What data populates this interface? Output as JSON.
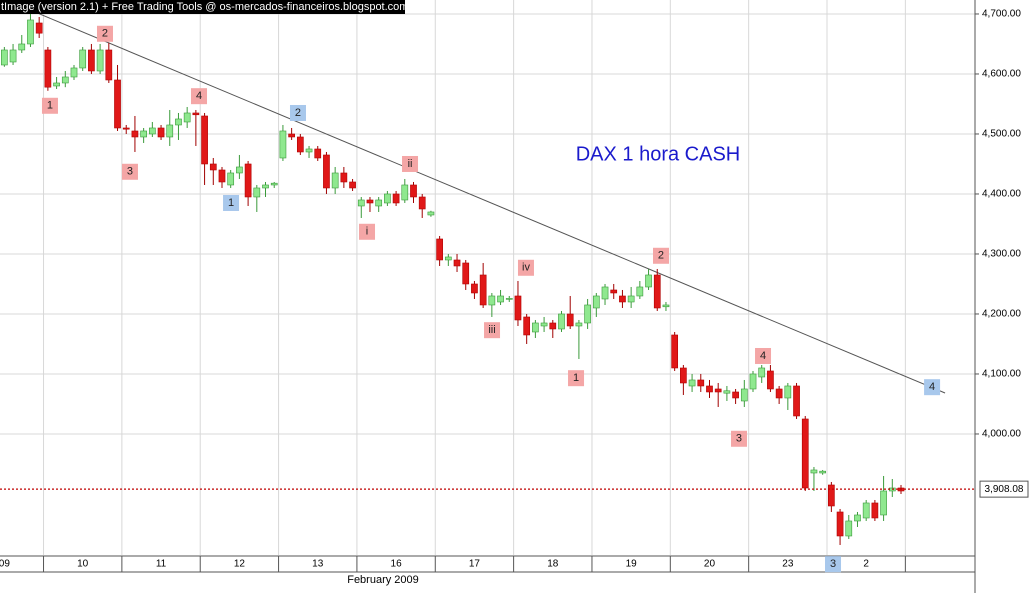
{
  "chart_data": {
    "type": "candlestick",
    "header": "tImage (version 2.1) + Free Trading Tools @ os-mercados-financeiros.blogspot.com",
    "title": "DAX 1 hora CASH",
    "title_color": "#1a1acc",
    "xlabel": "February 2009",
    "up_color": "#8fe88f",
    "down_color": "#e01818",
    "grid": true,
    "xlim": [
      0,
      112
    ],
    "ylim": [
      3798.3,
      4723.3
    ],
    "yticks": [
      {
        "value": 4700,
        "label": "4,700.00"
      },
      {
        "value": 4600,
        "label": "4,600.00"
      },
      {
        "value": 4500,
        "label": "4,500.00"
      },
      {
        "value": 4400,
        "label": "4,400.00"
      },
      {
        "value": 4300,
        "label": "4,300.00"
      },
      {
        "value": 4200,
        "label": "4,200.00"
      },
      {
        "value": 4100,
        "label": "4,100.00"
      },
      {
        "value": 4000,
        "label": "4,000.00"
      }
    ],
    "xticks": [
      {
        "value": 0.5,
        "label": "09"
      },
      {
        "value": 9.5,
        "label": "10"
      },
      {
        "value": 18.5,
        "label": "11"
      },
      {
        "value": 27.5,
        "label": "12"
      },
      {
        "value": 36.5,
        "label": "13"
      },
      {
        "value": 45.5,
        "label": "16"
      },
      {
        "value": 54.5,
        "label": "17"
      },
      {
        "value": 63.5,
        "label": "18"
      },
      {
        "value": 72.5,
        "label": "19"
      },
      {
        "value": 81.5,
        "label": "20"
      },
      {
        "value": 90.5,
        "label": "23"
      },
      {
        "value": 99.5,
        "label": "2"
      }
    ],
    "ohlc": [
      [
        4615,
        4645,
        4612,
        4640
      ],
      [
        4620,
        4650,
        4615,
        4640
      ],
      [
        4640,
        4665,
        4635,
        4650
      ],
      [
        4650,
        4700,
        4645,
        4690
      ],
      [
        4685,
        4695,
        4660,
        4668
      ],
      [
        4640,
        4645,
        4572,
        4578
      ],
      [
        4580,
        4595,
        4575,
        4585
      ],
      [
        4585,
        4605,
        4578,
        4595
      ],
      [
        4595,
        4615,
        4590,
        4610
      ],
      [
        4610,
        4645,
        4605,
        4640
      ],
      [
        4640,
        4650,
        4600,
        4605
      ],
      [
        4605,
        4650,
        4600,
        4640
      ],
      [
        4640,
        4652,
        4585,
        4590
      ],
      [
        4590,
        4615,
        4505,
        4510
      ],
      [
        4510,
        4515,
        4500,
        4508
      ],
      [
        4505,
        4530,
        4470,
        4495
      ],
      [
        4495,
        4510,
        4485,
        4505
      ],
      [
        4500,
        4520,
        4495,
        4510
      ],
      [
        4510,
        4515,
        4490,
        4495
      ],
      [
        4495,
        4540,
        4480,
        4515
      ],
      [
        4515,
        4535,
        4490,
        4525
      ],
      [
        4520,
        4545,
        4510,
        4535
      ],
      [
        4535,
        4540,
        4480,
        4532
      ],
      [
        4530,
        4535,
        4415,
        4450
      ],
      [
        4450,
        4460,
        4415,
        4440
      ],
      [
        4440,
        4445,
        4410,
        4420
      ],
      [
        4415,
        4440,
        4410,
        4435
      ],
      [
        4435,
        4465,
        4425,
        4445
      ],
      [
        4450,
        4455,
        4380,
        4395
      ],
      [
        4395,
        4415,
        4370,
        4410
      ],
      [
        4410,
        4420,
        4395,
        4415
      ],
      [
        4415,
        4420,
        4410,
        4418
      ],
      [
        4460,
        4515,
        4455,
        4505
      ],
      [
        4500,
        4510,
        4490,
        4495
      ],
      [
        4495,
        4500,
        4465,
        4470
      ],
      [
        4470,
        4480,
        4460,
        4475
      ],
      [
        4475,
        4480,
        4455,
        4460
      ],
      [
        4465,
        4470,
        4400,
        4410
      ],
      [
        4410,
        4445,
        4400,
        4435
      ],
      [
        4435,
        4445,
        4410,
        4420
      ],
      [
        4420,
        4425,
        4405,
        4410
      ],
      [
        4380,
        4395,
        4360,
        4390
      ],
      [
        4390,
        4395,
        4370,
        4385
      ],
      [
        4380,
        4395,
        4370,
        4390
      ],
      [
        4385,
        4405,
        4380,
        4400
      ],
      [
        4400,
        4405,
        4380,
        4385
      ],
      [
        4390,
        4425,
        4385,
        4415
      ],
      [
        4415,
        4420,
        4385,
        4395
      ],
      [
        4395,
        4400,
        4360,
        4375
      ],
      [
        4365,
        4372,
        4362,
        4370
      ],
      [
        4325,
        4330,
        4280,
        4290
      ],
      [
        4290,
        4300,
        4280,
        4295
      ],
      [
        4290,
        4300,
        4270,
        4280
      ],
      [
        4285,
        4290,
        4240,
        4250
      ],
      [
        4250,
        4255,
        4225,
        4235
      ],
      [
        4265,
        4285,
        4210,
        4215
      ],
      [
        4215,
        4235,
        4195,
        4230
      ],
      [
        4220,
        4240,
        4215,
        4230
      ],
      [
        4225,
        4230,
        4220,
        4226
      ],
      [
        4230,
        4255,
        4180,
        4190
      ],
      [
        4195,
        4200,
        4150,
        4165
      ],
      [
        4170,
        4190,
        4160,
        4185
      ],
      [
        4180,
        4195,
        4170,
        4185
      ],
      [
        4185,
        4190,
        4160,
        4175
      ],
      [
        4175,
        4205,
        4170,
        4200
      ],
      [
        4200,
        4230,
        4175,
        4180
      ],
      [
        4180,
        4190,
        4125,
        4185
      ],
      [
        4185,
        4225,
        4175,
        4215
      ],
      [
        4210,
        4235,
        4195,
        4230
      ],
      [
        4225,
        4250,
        4215,
        4245
      ],
      [
        4240,
        4250,
        4225,
        4235
      ],
      [
        4230,
        4240,
        4210,
        4220
      ],
      [
        4220,
        4245,
        4210,
        4230
      ],
      [
        4230,
        4255,
        4225,
        4245
      ],
      [
        4245,
        4275,
        4240,
        4265
      ],
      [
        4265,
        4275,
        4205,
        4210
      ],
      [
        4212,
        4220,
        4205,
        4215
      ],
      [
        4165,
        4170,
        4105,
        4110
      ],
      [
        4110,
        4115,
        4065,
        4085
      ],
      [
        4080,
        4100,
        4070,
        4090
      ],
      [
        4090,
        4100,
        4070,
        4080
      ],
      [
        4080,
        4090,
        4060,
        4070
      ],
      [
        4075,
        4085,
        4045,
        4070
      ],
      [
        4068,
        4080,
        4055,
        4072
      ],
      [
        4070,
        4075,
        4050,
        4060
      ],
      [
        4055,
        4090,
        4045,
        4075
      ],
      [
        4075,
        4105,
        4070,
        4100
      ],
      [
        4095,
        4115,
        4085,
        4110
      ],
      [
        4105,
        4115,
        4070,
        4075
      ],
      [
        4075,
        4080,
        4050,
        4060
      ],
      [
        4060,
        4085,
        4040,
        4080
      ],
      [
        4080,
        4085,
        4025,
        4030
      ],
      [
        4025,
        4030,
        3905,
        3910
      ],
      [
        3935,
        3945,
        3905,
        3940
      ],
      [
        3935,
        3940,
        3932,
        3938
      ],
      [
        3915,
        3920,
        3870,
        3880
      ],
      [
        3870,
        3875,
        3815,
        3830
      ],
      [
        3830,
        3865,
        3825,
        3855
      ],
      [
        3855,
        3870,
        3845,
        3865
      ],
      [
        3860,
        3890,
        3855,
        3885
      ],
      [
        3885,
        3890,
        3855,
        3860
      ],
      [
        3865,
        3930,
        3855,
        3905
      ],
      [
        3905,
        3925,
        3895,
        3910
      ],
      [
        3910,
        3915,
        3900,
        3905
      ]
    ],
    "trendline": {
      "x": [
        3.45,
        108.56
      ],
      "y": [
        4706.7,
        4068.3
      ],
      "color": "#555555"
    },
    "hline": {
      "value": 3908.08,
      "label": "3,908.08",
      "color": "#c00000"
    },
    "annotations": [
      {
        "text": "1",
        "x": 5.74,
        "y": 4547,
        "color": "#f4a6a6"
      },
      {
        "text": "2",
        "x": 12.06,
        "y": 4667,
        "color": "#f4a6a6"
      },
      {
        "text": "3",
        "x": 14.93,
        "y": 4437,
        "color": "#f4a6a6"
      },
      {
        "text": "4",
        "x": 22.86,
        "y": 4563,
        "color": "#f4a6a6"
      },
      {
        "text": "1",
        "x": 26.54,
        "y": 4385,
        "color": "#a8c8ec"
      },
      {
        "text": "2",
        "x": 34.23,
        "y": 4535,
        "color": "#a8c8ec"
      },
      {
        "text": "i",
        "x": 42.16,
        "y": 4337,
        "color": "#f4a6a6"
      },
      {
        "text": "ii",
        "x": 47.1,
        "y": 4450,
        "color": "#f4a6a6"
      },
      {
        "text": "iii",
        "x": 56.52,
        "y": 4173,
        "color": "#f4a6a6"
      },
      {
        "text": "iv",
        "x": 60.42,
        "y": 4277,
        "color": "#f4a6a6"
      },
      {
        "text": "1",
        "x": 66.17,
        "y": 4093,
        "color": "#f4a6a6"
      },
      {
        "text": "2",
        "x": 75.93,
        "y": 4297,
        "color": "#f4a6a6"
      },
      {
        "text": "3",
        "x": 84.89,
        "y": 3992,
        "color": "#f4a6a6"
      },
      {
        "text": "4",
        "x": 87.65,
        "y": 4130,
        "color": "#f4a6a6"
      },
      {
        "text": "3",
        "x": 95.69,
        "y": 3783,
        "color": "#a8c8ec"
      },
      {
        "text": "4",
        "x": 107.07,
        "y": 4078,
        "color": "#a8c8ec"
      }
    ]
  }
}
